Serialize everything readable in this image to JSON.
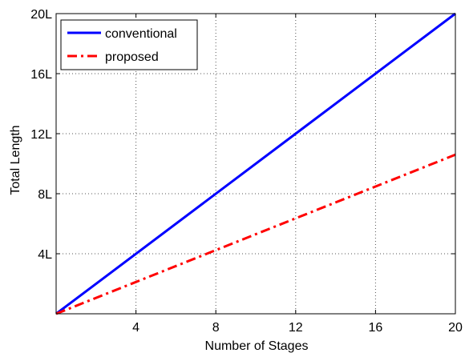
{
  "chart_data": {
    "type": "line",
    "title": "",
    "xlabel": "Number of Stages",
    "ylabel": "Total Length",
    "xlim": [
      0,
      20
    ],
    "ylim": [
      0,
      20
    ],
    "xticks": [
      4,
      8,
      12,
      16,
      20
    ],
    "xtick_labels": [
      "4",
      "8",
      "12",
      "16",
      "20"
    ],
    "yticks": [
      4,
      8,
      12,
      16,
      20
    ],
    "ytick_labels": [
      "4L",
      "8L",
      "12L",
      "16L",
      "20L"
    ],
    "grid": true,
    "legend_position": "top-left",
    "series": [
      {
        "name": "conventional",
        "color": "#0000ff",
        "style": "solid",
        "x": [
          0,
          20
        ],
        "y": [
          0,
          20
        ]
      },
      {
        "name": "proposed",
        "color": "#ff0000",
        "style": "dash-dot",
        "x": [
          0,
          20
        ],
        "y": [
          0,
          10.6
        ]
      }
    ]
  }
}
